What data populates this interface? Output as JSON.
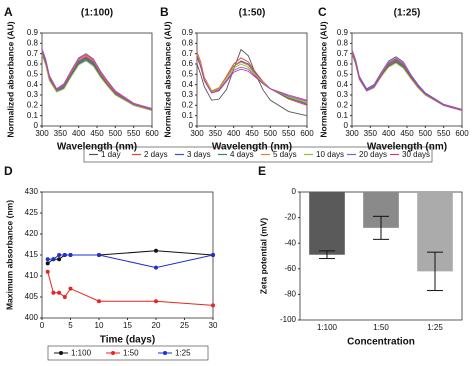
{
  "chart_data": [
    {
      "type": "line",
      "label": "A",
      "title": "(1:100)",
      "xlabel": "Wavelength (nm)",
      "ylabel": "Normalized absorbance (AU)",
      "x": [
        300,
        310,
        320,
        340,
        360,
        380,
        400,
        420,
        440,
        460,
        480,
        500,
        550,
        600
      ],
      "xlim": [
        300,
        600
      ],
      "xticks": [
        300,
        350,
        400,
        450,
        500,
        550,
        600
      ],
      "ylim": [
        0,
        0.9
      ],
      "yticks": [
        0,
        0.1,
        0.2,
        0.3,
        0.4,
        0.5,
        0.6,
        0.7,
        0.8,
        0.9
      ],
      "series": [
        {
          "name": "1 day",
          "color": "#555555",
          "values": [
            0.72,
            0.62,
            0.46,
            0.34,
            0.38,
            0.5,
            0.62,
            0.66,
            0.61,
            0.5,
            0.4,
            0.32,
            0.21,
            0.16
          ]
        },
        {
          "name": "2 days",
          "color": "#e8413c",
          "values": [
            0.74,
            0.64,
            0.48,
            0.36,
            0.4,
            0.53,
            0.65,
            0.69,
            0.64,
            0.52,
            0.42,
            0.33,
            0.22,
            0.16
          ]
        },
        {
          "name": "3 days",
          "color": "#3a55c8",
          "values": [
            0.7,
            0.6,
            0.45,
            0.33,
            0.37,
            0.49,
            0.6,
            0.64,
            0.59,
            0.48,
            0.39,
            0.31,
            0.2,
            0.15
          ]
        },
        {
          "name": "4 days",
          "color": "#2e8b57",
          "values": [
            0.71,
            0.61,
            0.46,
            0.34,
            0.38,
            0.5,
            0.61,
            0.65,
            0.6,
            0.49,
            0.39,
            0.31,
            0.21,
            0.15
          ]
        },
        {
          "name": "5 days",
          "color": "#d08a2e",
          "values": [
            0.73,
            0.63,
            0.47,
            0.35,
            0.39,
            0.52,
            0.64,
            0.68,
            0.63,
            0.51,
            0.41,
            0.32,
            0.21,
            0.16
          ]
        },
        {
          "name": "10 days",
          "color": "#8fbf3a",
          "values": [
            0.69,
            0.59,
            0.44,
            0.33,
            0.36,
            0.48,
            0.59,
            0.63,
            0.58,
            0.47,
            0.38,
            0.3,
            0.2,
            0.15
          ]
        },
        {
          "name": "20 days",
          "color": "#8a5cc8",
          "values": [
            0.75,
            0.65,
            0.49,
            0.36,
            0.41,
            0.54,
            0.66,
            0.7,
            0.65,
            0.53,
            0.43,
            0.34,
            0.22,
            0.17
          ]
        },
        {
          "name": "30 days",
          "color": "#c8389a",
          "values": [
            0.72,
            0.62,
            0.47,
            0.35,
            0.39,
            0.51,
            0.63,
            0.67,
            0.62,
            0.5,
            0.4,
            0.32,
            0.21,
            0.16
          ]
        }
      ]
    },
    {
      "type": "line",
      "label": "B",
      "title": "(1:50)",
      "xlabel": "Wavelength (nm)",
      "ylabel": "Normalized absorbance (AU)",
      "x": [
        300,
        310,
        320,
        340,
        360,
        380,
        400,
        420,
        440,
        460,
        480,
        500,
        550,
        600
      ],
      "xlim": [
        300,
        600
      ],
      "xticks": [
        300,
        350,
        400,
        450,
        500,
        550,
        600
      ],
      "ylim": [
        0,
        0.9
      ],
      "yticks": [
        0,
        0.1,
        0.2,
        0.3,
        0.4,
        0.5,
        0.6,
        0.7,
        0.8,
        0.9
      ],
      "series": [
        {
          "color": "#555555",
          "values": [
            0.6,
            0.5,
            0.38,
            0.25,
            0.26,
            0.35,
            0.55,
            0.74,
            0.68,
            0.5,
            0.35,
            0.25,
            0.14,
            0.1
          ]
        },
        {
          "color": "#e8413c",
          "values": [
            0.72,
            0.62,
            0.47,
            0.34,
            0.37,
            0.48,
            0.6,
            0.66,
            0.62,
            0.52,
            0.43,
            0.36,
            0.26,
            0.2
          ]
        },
        {
          "color": "#3a55c8",
          "values": [
            0.7,
            0.6,
            0.46,
            0.33,
            0.36,
            0.47,
            0.58,
            0.63,
            0.6,
            0.51,
            0.42,
            0.36,
            0.27,
            0.21
          ]
        },
        {
          "color": "#2e8b57",
          "values": [
            0.7,
            0.6,
            0.46,
            0.33,
            0.36,
            0.47,
            0.58,
            0.62,
            0.59,
            0.5,
            0.42,
            0.36,
            0.27,
            0.22
          ]
        },
        {
          "color": "#d08a2e",
          "values": [
            0.71,
            0.61,
            0.46,
            0.34,
            0.37,
            0.47,
            0.58,
            0.62,
            0.59,
            0.5,
            0.42,
            0.36,
            0.28,
            0.22
          ]
        },
        {
          "color": "#8fbf3a",
          "values": [
            0.69,
            0.59,
            0.45,
            0.33,
            0.36,
            0.46,
            0.56,
            0.6,
            0.57,
            0.49,
            0.42,
            0.36,
            0.28,
            0.23
          ]
        },
        {
          "color": "#8a5cc8",
          "values": [
            0.68,
            0.58,
            0.44,
            0.32,
            0.35,
            0.44,
            0.54,
            0.57,
            0.55,
            0.48,
            0.41,
            0.36,
            0.29,
            0.24
          ]
        },
        {
          "color": "#c8389a",
          "values": [
            0.67,
            0.57,
            0.44,
            0.32,
            0.34,
            0.43,
            0.52,
            0.55,
            0.53,
            0.47,
            0.41,
            0.36,
            0.3,
            0.25
          ]
        }
      ]
    },
    {
      "type": "line",
      "label": "C",
      "title": "(1:25)",
      "xlabel": "Wavelength (nm)",
      "ylabel": "Normalized absorbance (AU)",
      "x": [
        300,
        310,
        320,
        340,
        360,
        380,
        400,
        420,
        440,
        460,
        480,
        500,
        550,
        600
      ],
      "xlim": [
        300,
        600
      ],
      "xticks": [
        300,
        350,
        400,
        450,
        500,
        550,
        600
      ],
      "ylim": [
        0,
        0.9
      ],
      "yticks": [
        0,
        0.1,
        0.2,
        0.3,
        0.4,
        0.5,
        0.6,
        0.7,
        0.8,
        0.9
      ],
      "series": [
        {
          "color": "#555555",
          "values": [
            0.7,
            0.6,
            0.45,
            0.34,
            0.37,
            0.48,
            0.58,
            0.62,
            0.57,
            0.47,
            0.37,
            0.3,
            0.2,
            0.15
          ]
        },
        {
          "color": "#e8413c",
          "values": [
            0.72,
            0.62,
            0.46,
            0.35,
            0.38,
            0.5,
            0.6,
            0.64,
            0.59,
            0.48,
            0.38,
            0.31,
            0.2,
            0.15
          ]
        },
        {
          "color": "#3a55c8",
          "values": [
            0.74,
            0.64,
            0.48,
            0.36,
            0.4,
            0.52,
            0.63,
            0.67,
            0.62,
            0.5,
            0.4,
            0.32,
            0.21,
            0.16
          ]
        },
        {
          "color": "#2e8b57",
          "values": [
            0.71,
            0.61,
            0.46,
            0.35,
            0.38,
            0.49,
            0.59,
            0.63,
            0.58,
            0.48,
            0.38,
            0.3,
            0.2,
            0.15
          ]
        },
        {
          "color": "#d08a2e",
          "values": [
            0.73,
            0.63,
            0.47,
            0.35,
            0.39,
            0.51,
            0.62,
            0.66,
            0.61,
            0.49,
            0.39,
            0.31,
            0.21,
            0.16
          ]
        },
        {
          "color": "#8fbf3a",
          "values": [
            0.7,
            0.6,
            0.45,
            0.34,
            0.37,
            0.48,
            0.57,
            0.61,
            0.56,
            0.46,
            0.37,
            0.3,
            0.2,
            0.15
          ]
        },
        {
          "color": "#8a5cc8",
          "values": [
            0.72,
            0.62,
            0.47,
            0.35,
            0.39,
            0.5,
            0.61,
            0.65,
            0.6,
            0.49,
            0.39,
            0.31,
            0.21,
            0.16
          ]
        },
        {
          "color": "#c8389a",
          "values": [
            0.71,
            0.61,
            0.46,
            0.34,
            0.38,
            0.49,
            0.6,
            0.64,
            0.59,
            0.48,
            0.38,
            0.31,
            0.2,
            0.15
          ]
        }
      ]
    },
    {
      "type": "line",
      "label": "D",
      "xlabel": "Time (days)",
      "ylabel": "Maximum absorbance (nm)",
      "markers": true,
      "x": [
        1,
        2,
        3,
        4,
        5,
        10,
        20,
        30
      ],
      "xlim": [
        0,
        30
      ],
      "xticks": [
        0,
        5,
        10,
        15,
        20,
        25,
        30
      ],
      "ylim": [
        400,
        430
      ],
      "yticks": [
        400,
        405,
        410,
        415,
        420,
        425,
        430
      ],
      "series": [
        {
          "name": "1:100",
          "color": "#111111",
          "values": [
            413,
            414,
            414,
            415,
            415,
            415,
            416,
            415
          ]
        },
        {
          "name": "1:50",
          "color": "#e8251f",
          "values": [
            411,
            406,
            406,
            405,
            407,
            404,
            404,
            403
          ]
        },
        {
          "name": "1:25",
          "color": "#1f2fd0",
          "values": [
            414,
            414,
            415,
            415,
            415,
            415,
            412,
            415
          ]
        }
      ]
    },
    {
      "type": "bar",
      "label": "E",
      "xlabel": "Concentration",
      "ylabel": "Zeta potential (mV)",
      "categories": [
        "1:100",
        "1:50",
        "1:25"
      ],
      "values": [
        -49,
        -28,
        -62
      ],
      "errors": [
        3,
        9,
        15
      ],
      "colors": [
        "#5a5a5a",
        "#8a8a8a",
        "#ababab"
      ],
      "ylim": [
        -100,
        0
      ],
      "yticks": [
        0,
        -20,
        -40,
        -60,
        -80,
        -100
      ]
    }
  ]
}
